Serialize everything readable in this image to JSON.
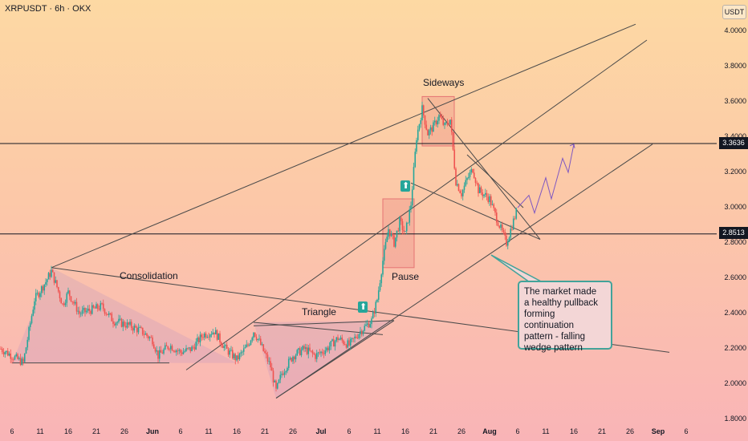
{
  "header": {
    "symbol": "XRPUSDT · 6h · OKX"
  },
  "axis": {
    "currency": "USDT",
    "y_ticks": [
      "4.0000",
      "3.8000",
      "3.6000",
      "3.4000",
      "3.2000",
      "3.0000",
      "2.8000",
      "2.6000",
      "2.4000",
      "2.2000",
      "2.0000",
      "1.8000"
    ],
    "x_ticks": [
      {
        "label": "6",
        "bold": false
      },
      {
        "label": "11",
        "bold": false
      },
      {
        "label": "16",
        "bold": false
      },
      {
        "label": "21",
        "bold": false
      },
      {
        "label": "26",
        "bold": false
      },
      {
        "label": "Jun",
        "bold": true
      },
      {
        "label": "6",
        "bold": false
      },
      {
        "label": "11",
        "bold": false
      },
      {
        "label": "16",
        "bold": false
      },
      {
        "label": "21",
        "bold": false
      },
      {
        "label": "26",
        "bold": false
      },
      {
        "label": "Jul",
        "bold": true
      },
      {
        "label": "6",
        "bold": false
      },
      {
        "label": "11",
        "bold": false
      },
      {
        "label": "16",
        "bold": false
      },
      {
        "label": "21",
        "bold": false
      },
      {
        "label": "26",
        "bold": false
      },
      {
        "label": "Aug",
        "bold": true
      },
      {
        "label": "6",
        "bold": false
      },
      {
        "label": "11",
        "bold": false
      },
      {
        "label": "16",
        "bold": false
      },
      {
        "label": "21",
        "bold": false
      },
      {
        "label": "26",
        "bold": false
      },
      {
        "label": "Sep",
        "bold": true
      },
      {
        "label": "6",
        "bold": false
      }
    ],
    "price_badges": [
      "3.3636",
      "2.8513"
    ]
  },
  "annotations": {
    "consolidation": "Consolidation",
    "triangle": "Triangle",
    "pause": "Pause",
    "sideways": "Sideways",
    "note_lines": [
      "The market made",
      "a healthy pullback",
      "forming continuation",
      "pattern - falling",
      "wedge pattern"
    ]
  },
  "colors": {
    "up": "#26a69a",
    "down": "#ef5350",
    "line": "#4a4a4a",
    "box": "#e57373"
  },
  "chart_data": {
    "type": "candlestick",
    "symbol": "XRPUSDT",
    "interval": "6h",
    "exchange": "OKX",
    "ylim": [
      1.8,
      4.05
    ],
    "horizontal_levels": [
      3.3636,
      2.8513
    ],
    "close_path": [
      [
        "May 4",
        2.2
      ],
      [
        "May 6",
        2.16
      ],
      [
        "May 8",
        2.12
      ],
      [
        "May 9",
        2.3
      ],
      [
        "May 10",
        2.48
      ],
      [
        "May 12",
        2.58
      ],
      [
        "May 13",
        2.64
      ],
      [
        "May 14",
        2.55
      ],
      [
        "May 15",
        2.45
      ],
      [
        "May 16",
        2.52
      ],
      [
        "May 18",
        2.4
      ],
      [
        "May 20",
        2.42
      ],
      [
        "May 22",
        2.44
      ],
      [
        "May 24",
        2.36
      ],
      [
        "May 27",
        2.33
      ],
      [
        "May 29",
        2.3
      ],
      [
        "May 31",
        2.25
      ],
      [
        "Jun 1",
        2.16
      ],
      [
        "Jun 3",
        2.22
      ],
      [
        "Jun 5",
        2.18
      ],
      [
        "Jun 7",
        2.2
      ],
      [
        "Jun 9",
        2.28
      ],
      [
        "Jun 11",
        2.3
      ],
      [
        "Jun 13",
        2.2
      ],
      [
        "Jun 15",
        2.14
      ],
      [
        "Jun 17",
        2.22
      ],
      [
        "Jun 18",
        2.3
      ],
      [
        "Jun 19",
        2.24
      ],
      [
        "Jun 21",
        2.1
      ],
      [
        "Jun 22",
        1.96
      ],
      [
        "Jun 23",
        2.06
      ],
      [
        "Jun 25",
        2.16
      ],
      [
        "Jun 27",
        2.2
      ],
      [
        "Jun 29",
        2.16
      ],
      [
        "Jul 1",
        2.2
      ],
      [
        "Jul 3",
        2.26
      ],
      [
        "Jul 5",
        2.22
      ],
      [
        "Jul 7",
        2.3
      ],
      [
        "Jul 9",
        2.36
      ],
      [
        "Jul 10",
        2.48
      ],
      [
        "Jul 11",
        2.7
      ],
      [
        "Jul 12",
        2.88
      ],
      [
        "Jul 13",
        2.8
      ],
      [
        "Jul 14",
        2.92
      ],
      [
        "Jul 15",
        2.85
      ],
      [
        "Jul 16",
        3.02
      ],
      [
        "Jul 17",
        3.4
      ],
      [
        "Jul 18",
        3.56
      ],
      [
        "Jul 19",
        3.42
      ],
      [
        "Jul 20",
        3.46
      ],
      [
        "Jul 21",
        3.52
      ],
      [
        "Jul 22",
        3.46
      ],
      [
        "Jul 23",
        3.5
      ],
      [
        "Jul 24",
        3.15
      ],
      [
        "Jul 25",
        3.08
      ],
      [
        "Jul 26",
        3.16
      ],
      [
        "Jul 27",
        3.22
      ],
      [
        "Jul 28",
        3.1
      ],
      [
        "Jul 30",
        3.05
      ],
      [
        "Jul 31",
        2.96
      ],
      [
        "Aug 2",
        2.8
      ],
      [
        "Aug 3",
        2.9
      ],
      [
        "Aug 4",
        3.0
      ]
    ],
    "projection": [
      [
        "Aug 4",
        3.0
      ],
      [
        "Aug 6",
        3.07
      ],
      [
        "Aug 7",
        2.97
      ],
      [
        "Aug 9",
        3.17
      ],
      [
        "Aug 10",
        3.05
      ],
      [
        "Aug 12",
        3.28
      ],
      [
        "Aug 13",
        3.2
      ],
      [
        "Aug 14",
        3.36
      ]
    ],
    "trendlines": [
      {
        "from": [
          "May 6",
          2.12
        ],
        "to": [
          "Jun 3",
          2.12
        ]
      },
      {
        "from": [
          "May 13",
          2.66
        ],
        "to": [
          "Aug 25",
          4.04
        ]
      },
      {
        "from": [
          "May 13",
          2.66
        ],
        "to": [
          "Aug 31",
          2.18
        ]
      },
      {
        "from": [
          "Jun 6",
          2.08
        ],
        "to": [
          "Aug 27",
          3.95
        ]
      },
      {
        "from": [
          "Jun 22",
          1.92
        ],
        "to": [
          "Jul 13",
          2.36
        ]
      },
      {
        "from": [
          "Jun 22",
          1.92
        ],
        "to": [
          "Aug 28",
          3.36
        ]
      },
      {
        "from": [
          "Jun 18",
          2.33
        ],
        "to": [
          "Jul 13",
          2.36
        ]
      },
      {
        "from": [
          "Jun 18",
          2.35
        ],
        "to": [
          "Jul 11",
          2.28
        ]
      },
      {
        "from": [
          "Jul 19",
          3.62
        ],
        "to": [
          "Aug 8",
          2.82
        ]
      },
      {
        "from": [
          "Jul 16",
          3.14
        ],
        "to": [
          "Aug 8",
          2.82
        ]
      },
      {
        "from": [
          "Jul 26",
          3.3
        ],
        "to": [
          "Aug 5",
          3.0
        ]
      }
    ]
  }
}
